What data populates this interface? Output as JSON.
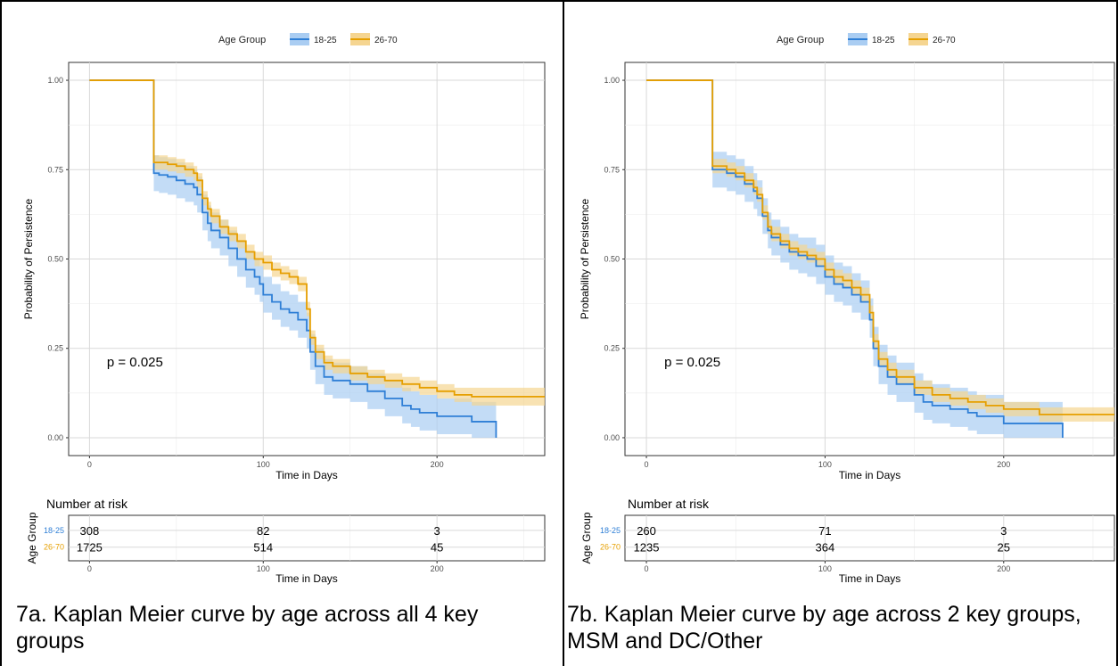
{
  "chart_data": [
    {
      "type": "line",
      "subtype": "kaplan-meier",
      "legend_title": "Age Group",
      "legend_position": "top",
      "xlabel": "Time in Days",
      "ylabel": "Probability of Persistence",
      "xlim": [
        -12,
        262
      ],
      "ylim": [
        -0.05,
        1.05
      ],
      "xticks": [
        0,
        100,
        200
      ],
      "xtick_labels": [
        "0",
        "100",
        "200"
      ],
      "yticks": [
        0,
        0.25,
        0.5,
        0.75,
        1.0
      ],
      "ytick_labels": [
        "0.00",
        "0.25",
        "0.50",
        "0.75",
        "1.00"
      ],
      "grid": true,
      "annotation": "p = 0.025",
      "annotation_at": [
        10,
        0.2
      ],
      "colors": {
        "18-25": "#2f7fd6",
        "26-70": "#e69f00",
        "band_18-25": "#aacdf2",
        "band_26-70": "#f5d591"
      },
      "series": [
        {
          "name": "18-25",
          "x": [
            0,
            37,
            37,
            40,
            45,
            50,
            55,
            60,
            62,
            65,
            68,
            70,
            75,
            80,
            85,
            90,
            95,
            98,
            100,
            105,
            110,
            115,
            120,
            125,
            127,
            130,
            135,
            140,
            150,
            160,
            170,
            180,
            185,
            190,
            200,
            220,
            234,
            234
          ],
          "y": [
            1.0,
            1.0,
            0.74,
            0.735,
            0.73,
            0.72,
            0.71,
            0.7,
            0.68,
            0.63,
            0.6,
            0.58,
            0.56,
            0.53,
            0.5,
            0.47,
            0.45,
            0.43,
            0.4,
            0.38,
            0.36,
            0.35,
            0.33,
            0.3,
            0.24,
            0.2,
            0.17,
            0.16,
            0.15,
            0.13,
            0.11,
            0.09,
            0.08,
            0.07,
            0.06,
            0.045,
            0.045,
            0.0
          ],
          "lower": [
            1.0,
            1.0,
            0.69,
            0.685,
            0.68,
            0.67,
            0.66,
            0.65,
            0.63,
            0.58,
            0.55,
            0.53,
            0.51,
            0.48,
            0.45,
            0.42,
            0.4,
            0.38,
            0.35,
            0.33,
            0.31,
            0.3,
            0.28,
            0.25,
            0.19,
            0.15,
            0.12,
            0.11,
            0.1,
            0.08,
            0.06,
            0.04,
            0.03,
            0.02,
            0.01,
            0.0,
            0.0,
            0.0
          ],
          "upper": [
            1.0,
            1.0,
            0.79,
            0.785,
            0.78,
            0.77,
            0.76,
            0.75,
            0.73,
            0.68,
            0.65,
            0.63,
            0.61,
            0.58,
            0.55,
            0.52,
            0.5,
            0.48,
            0.45,
            0.43,
            0.41,
            0.4,
            0.38,
            0.35,
            0.29,
            0.25,
            0.22,
            0.21,
            0.2,
            0.18,
            0.16,
            0.14,
            0.13,
            0.12,
            0.11,
            0.1,
            0.1,
            0.0
          ]
        },
        {
          "name": "26-70",
          "x": [
            0,
            37,
            37,
            40,
            45,
            50,
            55,
            60,
            62,
            65,
            68,
            70,
            75,
            80,
            85,
            90,
            95,
            100,
            105,
            110,
            115,
            120,
            125,
            127,
            130,
            135,
            140,
            150,
            160,
            170,
            180,
            190,
            200,
            210,
            220,
            262
          ],
          "y": [
            1.0,
            1.0,
            0.77,
            0.77,
            0.765,
            0.76,
            0.75,
            0.74,
            0.72,
            0.67,
            0.64,
            0.62,
            0.59,
            0.57,
            0.55,
            0.52,
            0.5,
            0.49,
            0.47,
            0.46,
            0.45,
            0.43,
            0.36,
            0.28,
            0.24,
            0.21,
            0.2,
            0.18,
            0.17,
            0.16,
            0.15,
            0.14,
            0.13,
            0.12,
            0.115,
            0.115
          ],
          "lower": [
            1.0,
            1.0,
            0.75,
            0.75,
            0.745,
            0.74,
            0.73,
            0.72,
            0.7,
            0.65,
            0.62,
            0.6,
            0.57,
            0.55,
            0.53,
            0.5,
            0.48,
            0.47,
            0.45,
            0.44,
            0.43,
            0.41,
            0.34,
            0.26,
            0.22,
            0.19,
            0.18,
            0.16,
            0.15,
            0.14,
            0.13,
            0.12,
            0.11,
            0.1,
            0.09,
            0.09
          ],
          "upper": [
            1.0,
            1.0,
            0.79,
            0.79,
            0.785,
            0.78,
            0.77,
            0.76,
            0.74,
            0.69,
            0.66,
            0.64,
            0.61,
            0.59,
            0.57,
            0.54,
            0.52,
            0.51,
            0.49,
            0.48,
            0.47,
            0.45,
            0.38,
            0.3,
            0.26,
            0.23,
            0.22,
            0.2,
            0.19,
            0.18,
            0.17,
            0.16,
            0.15,
            0.14,
            0.14,
            0.14
          ]
        }
      ],
      "risk_table": {
        "title": "Number at risk",
        "ylabel": "Age Group",
        "xlabel": "Time in Days",
        "times": [
          0,
          100,
          200
        ],
        "time_labels": [
          "0",
          "100",
          "200"
        ],
        "rows": [
          {
            "name": "18-25",
            "values": [
              "308",
              "82",
              "3"
            ]
          },
          {
            "name": "26-70",
            "values": [
              "1725",
              "514",
              "45"
            ]
          }
        ]
      }
    },
    {
      "type": "line",
      "subtype": "kaplan-meier",
      "legend_title": "Age Group",
      "legend_position": "top",
      "xlabel": "Time in Days",
      "ylabel": "Probability of Persistence",
      "xlim": [
        -12,
        262
      ],
      "ylim": [
        -0.05,
        1.05
      ],
      "xticks": [
        0,
        100,
        200
      ],
      "xtick_labels": [
        "0",
        "100",
        "200"
      ],
      "yticks": [
        0,
        0.25,
        0.5,
        0.75,
        1.0
      ],
      "ytick_labels": [
        "0.00",
        "0.25",
        "0.50",
        "0.75",
        "1.00"
      ],
      "grid": true,
      "annotation": "p = 0.025",
      "annotation_at": [
        10,
        0.2
      ],
      "colors": {
        "18-25": "#2f7fd6",
        "26-70": "#e69f00",
        "band_18-25": "#aacdf2",
        "band_26-70": "#f5d591"
      },
      "series": [
        {
          "name": "18-25",
          "x": [
            0,
            37,
            37,
            45,
            50,
            55,
            60,
            62,
            65,
            68,
            70,
            75,
            80,
            85,
            90,
            95,
            100,
            105,
            110,
            115,
            120,
            125,
            127,
            130,
            135,
            140,
            150,
            155,
            160,
            170,
            180,
            185,
            200,
            220,
            233,
            233
          ],
          "y": [
            1.0,
            1.0,
            0.75,
            0.74,
            0.73,
            0.71,
            0.69,
            0.67,
            0.62,
            0.58,
            0.56,
            0.54,
            0.52,
            0.51,
            0.5,
            0.48,
            0.45,
            0.43,
            0.42,
            0.4,
            0.38,
            0.33,
            0.25,
            0.2,
            0.17,
            0.15,
            0.12,
            0.1,
            0.09,
            0.08,
            0.07,
            0.06,
            0.04,
            0.04,
            0.04,
            0.0
          ],
          "lower": [
            1.0,
            1.0,
            0.7,
            0.69,
            0.68,
            0.66,
            0.64,
            0.62,
            0.57,
            0.53,
            0.51,
            0.49,
            0.47,
            0.46,
            0.45,
            0.43,
            0.4,
            0.38,
            0.37,
            0.35,
            0.33,
            0.28,
            0.2,
            0.15,
            0.12,
            0.1,
            0.07,
            0.05,
            0.04,
            0.03,
            0.02,
            0.01,
            0.0,
            0.0,
            0.0,
            0.0
          ],
          "upper": [
            1.0,
            1.0,
            0.8,
            0.79,
            0.78,
            0.76,
            0.74,
            0.72,
            0.67,
            0.63,
            0.61,
            0.59,
            0.57,
            0.56,
            0.56,
            0.54,
            0.51,
            0.49,
            0.48,
            0.46,
            0.44,
            0.39,
            0.31,
            0.26,
            0.23,
            0.21,
            0.18,
            0.16,
            0.15,
            0.14,
            0.13,
            0.12,
            0.1,
            0.1,
            0.1,
            0.0
          ]
        },
        {
          "name": "26-70",
          "x": [
            0,
            37,
            37,
            45,
            50,
            55,
            60,
            62,
            65,
            68,
            70,
            75,
            80,
            85,
            90,
            95,
            100,
            105,
            110,
            115,
            120,
            125,
            127,
            130,
            135,
            140,
            150,
            160,
            170,
            180,
            190,
            200,
            220,
            262
          ],
          "y": [
            1.0,
            1.0,
            0.76,
            0.75,
            0.74,
            0.72,
            0.7,
            0.68,
            0.63,
            0.59,
            0.57,
            0.55,
            0.53,
            0.52,
            0.51,
            0.5,
            0.47,
            0.45,
            0.44,
            0.42,
            0.4,
            0.35,
            0.27,
            0.22,
            0.19,
            0.17,
            0.14,
            0.12,
            0.11,
            0.1,
            0.09,
            0.08,
            0.065,
            0.065
          ],
          "lower": [
            1.0,
            1.0,
            0.74,
            0.73,
            0.72,
            0.7,
            0.68,
            0.66,
            0.61,
            0.57,
            0.55,
            0.53,
            0.51,
            0.5,
            0.49,
            0.48,
            0.45,
            0.43,
            0.42,
            0.4,
            0.38,
            0.33,
            0.25,
            0.2,
            0.17,
            0.15,
            0.12,
            0.1,
            0.09,
            0.08,
            0.07,
            0.06,
            0.045,
            0.045
          ],
          "upper": [
            1.0,
            1.0,
            0.78,
            0.77,
            0.76,
            0.74,
            0.72,
            0.7,
            0.65,
            0.61,
            0.59,
            0.57,
            0.55,
            0.54,
            0.53,
            0.52,
            0.49,
            0.47,
            0.46,
            0.44,
            0.42,
            0.37,
            0.29,
            0.24,
            0.21,
            0.19,
            0.16,
            0.14,
            0.13,
            0.12,
            0.11,
            0.1,
            0.085,
            0.085
          ]
        }
      ],
      "risk_table": {
        "title": "Number at risk",
        "ylabel": "Age Group",
        "xlabel": "Time in Days",
        "times": [
          0,
          100,
          200
        ],
        "time_labels": [
          "0",
          "100",
          "200"
        ],
        "rows": [
          {
            "name": "18-25",
            "values": [
              "260",
              "71",
              "3"
            ]
          },
          {
            "name": "26-70",
            "values": [
              "1235",
              "364",
              "25"
            ]
          }
        ]
      }
    }
  ],
  "captions": {
    "a": "7a. Kaplan Meier curve by age across all 4 key groups",
    "b": "7b. Kaplan Meier curve by age across 2 key groups, MSM and DC/Other"
  }
}
